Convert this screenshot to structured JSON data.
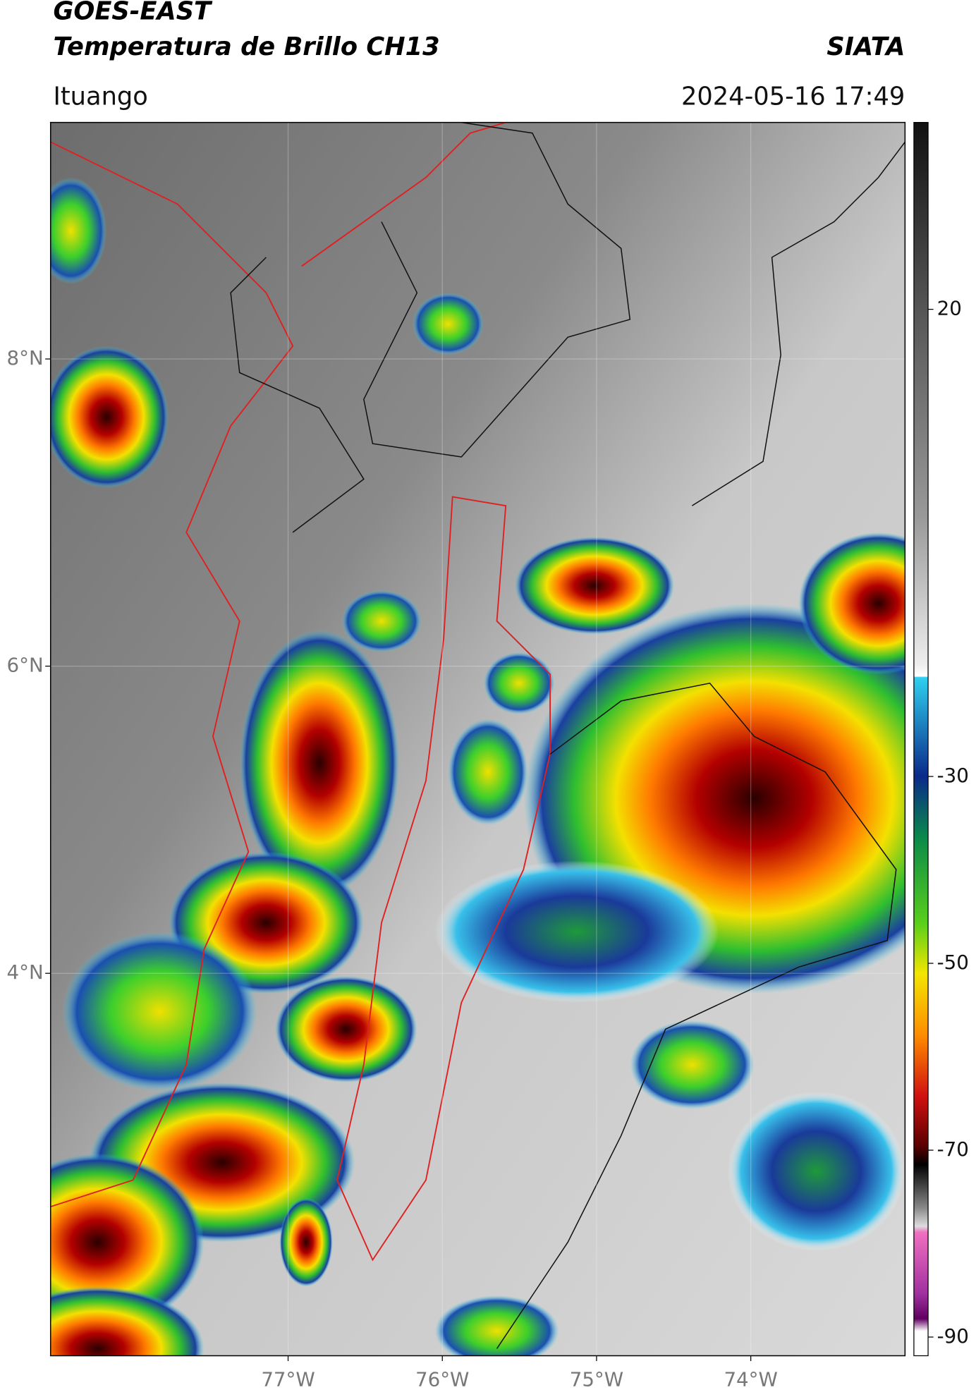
{
  "header": {
    "title_line1": "GOES-EAST",
    "title_line2": "Temperatura de Brillo CH13",
    "brand": "SIATA",
    "region": "Ituango",
    "timestamp": "2024-05-16 17:49"
  },
  "map": {
    "xlim": [
      -78.54,
      -73.0
    ],
    "ylim": [
      1.51,
      9.54
    ],
    "xticks": [
      {
        "value": -77,
        "label": "77°W"
      },
      {
        "value": -76,
        "label": "76°W"
      },
      {
        "value": -75,
        "label": "75°W"
      },
      {
        "value": -74,
        "label": "74°W"
      }
    ],
    "yticks": [
      {
        "value": 8,
        "label": "8°N"
      },
      {
        "value": 6,
        "label": "6°N"
      },
      {
        "value": 4,
        "label": "4°N"
      }
    ]
  },
  "colorbar": {
    "lim": [
      -92,
      40
    ],
    "ticks": [
      20,
      -30,
      -50,
      -70,
      -90
    ]
  }
}
